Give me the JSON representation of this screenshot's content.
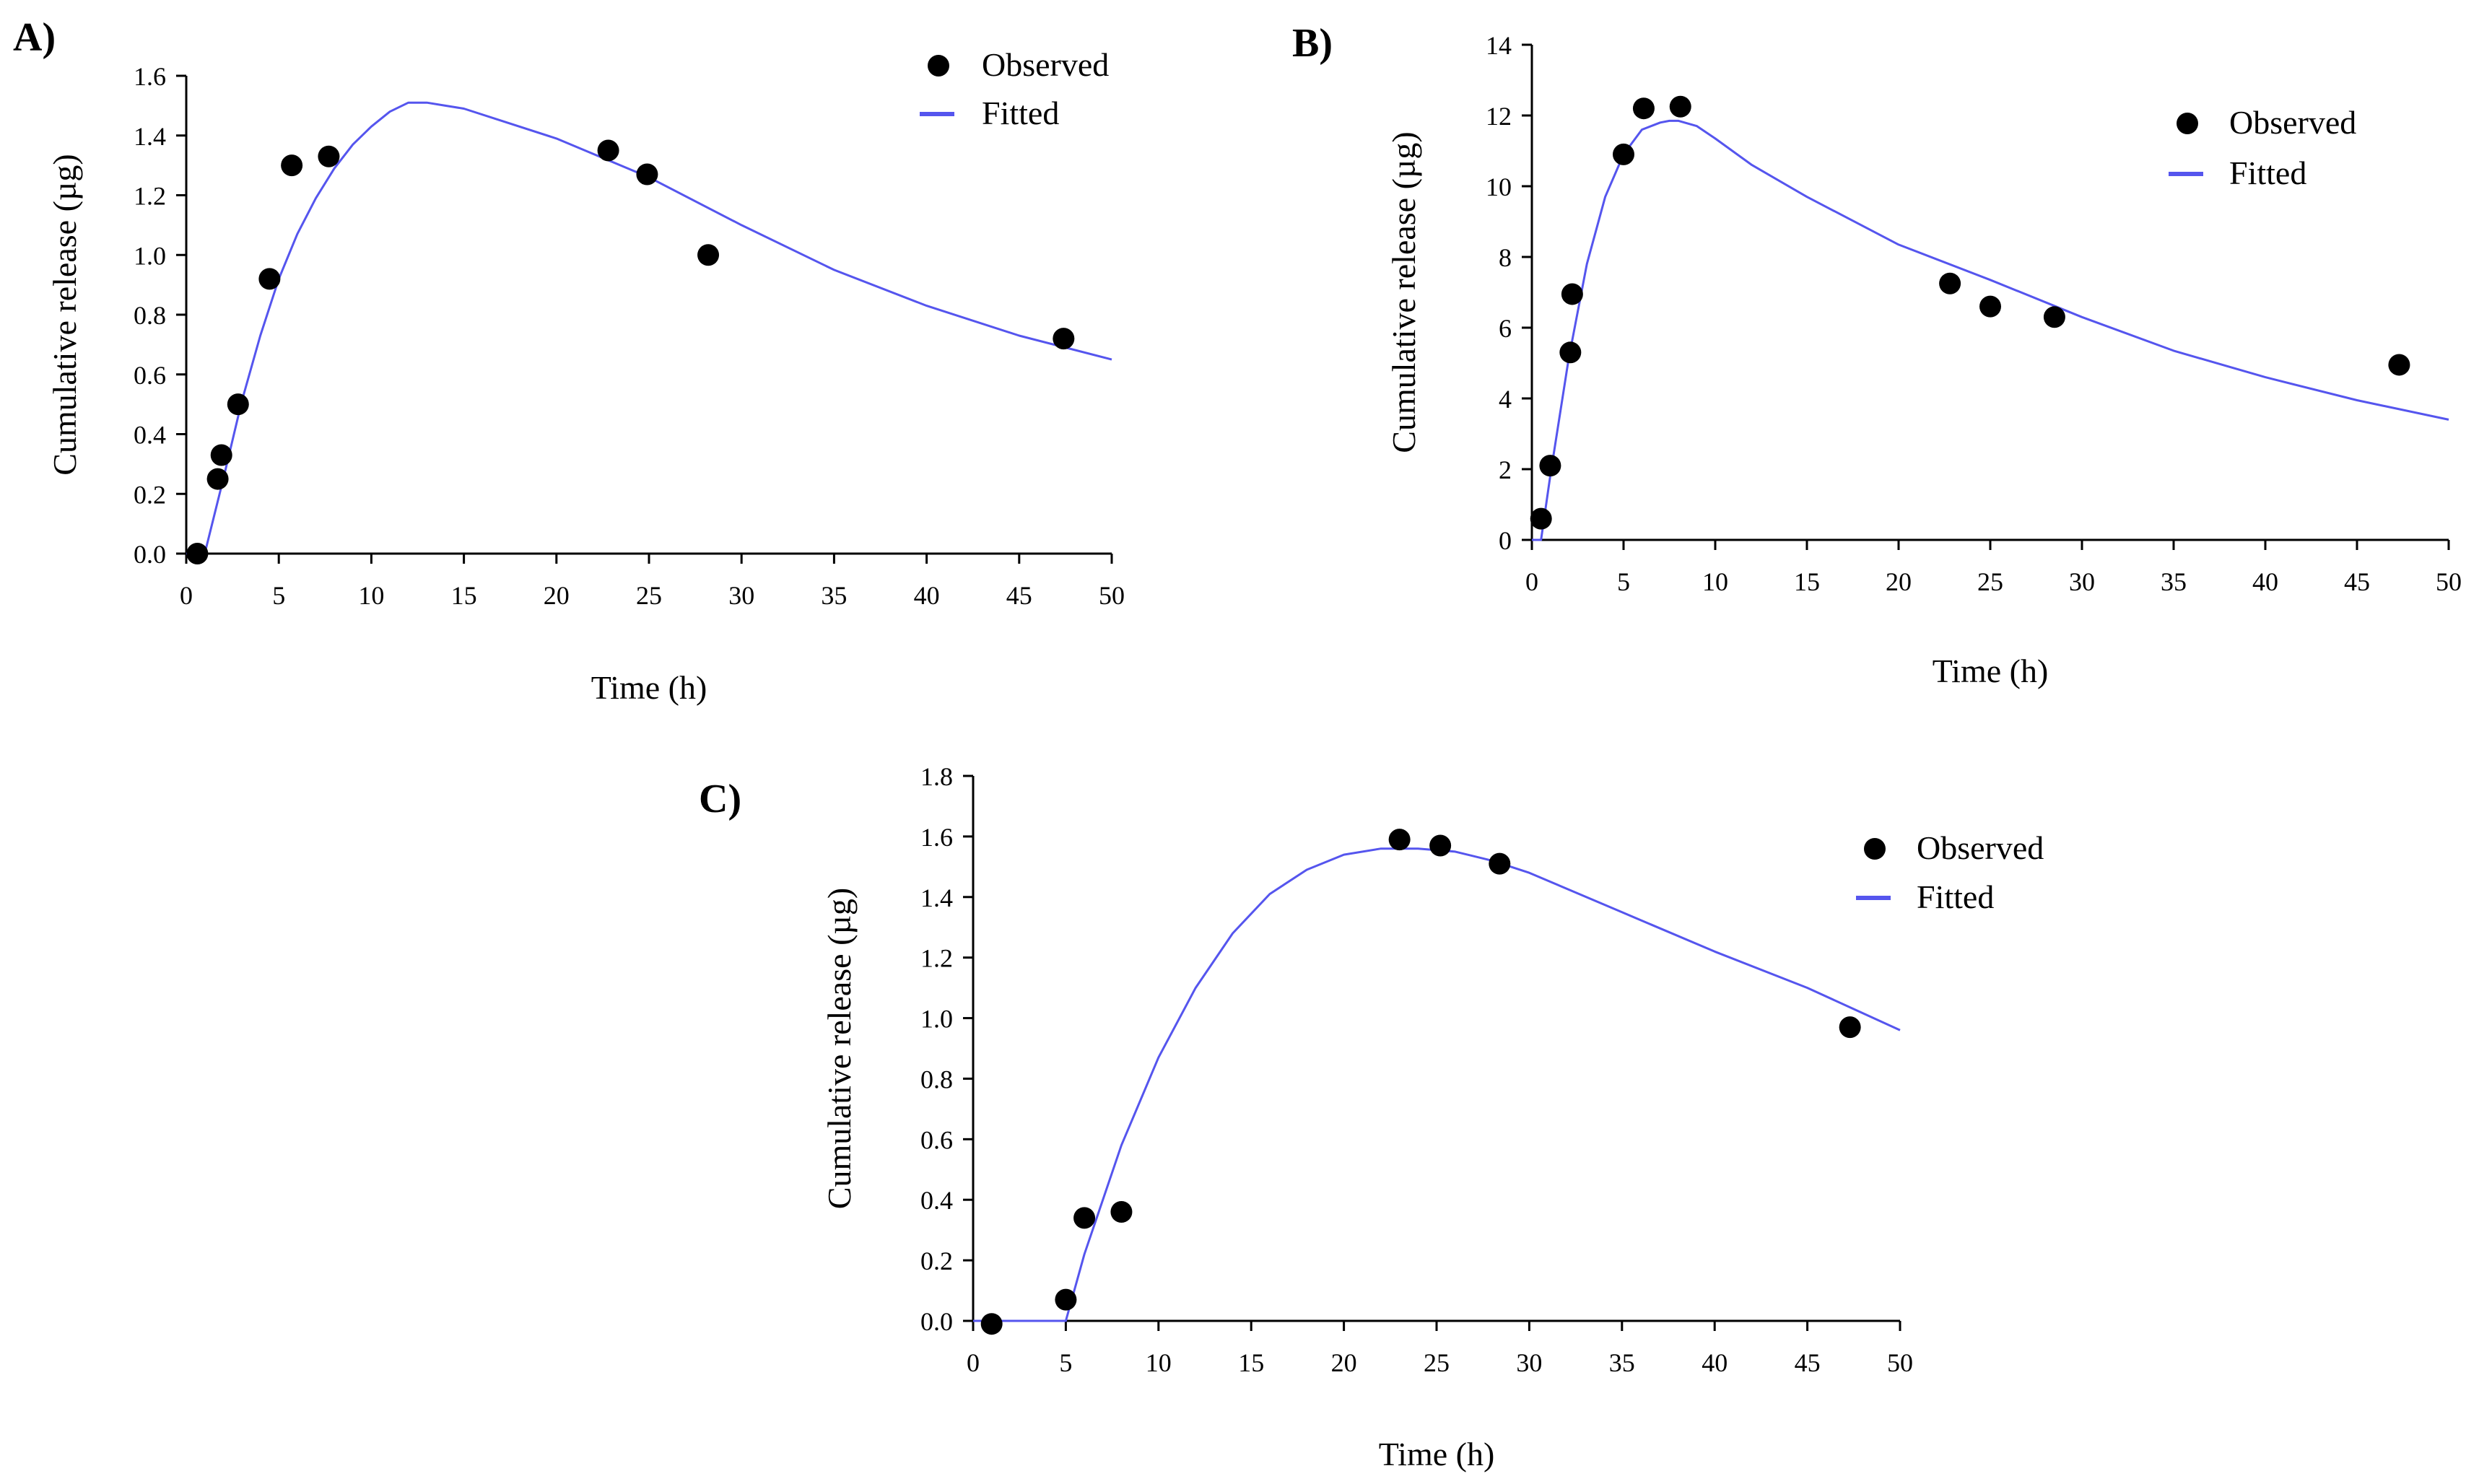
{
  "chart_data": [
    {
      "type": "scatter+line",
      "panel_label": "A)",
      "xlabel": "Time (h)",
      "ylabel": "Cumulative release (µg)",
      "xlim": [
        0,
        50
      ],
      "ylim": [
        0,
        1.6
      ],
      "xticks": [
        "0",
        "5",
        "10",
        "15",
        "20",
        "25",
        "30",
        "35",
        "40",
        "45",
        "50"
      ],
      "yticks": [
        "0.0",
        "0.2",
        "0.4",
        "0.6",
        "0.8",
        "1.0",
        "1.2",
        "1.4",
        "1.6"
      ],
      "legend": {
        "observed": "Observed",
        "fitted": "Fitted",
        "position": "top-right"
      },
      "observed": {
        "x": [
          0.6,
          1.7,
          1.9,
          2.8,
          4.5,
          5.7,
          7.7,
          22.8,
          24.9,
          28.2,
          47.4
        ],
        "y": [
          0.0,
          0.25,
          0.33,
          0.5,
          0.92,
          1.3,
          1.33,
          1.35,
          1.27,
          1.0,
          0.72
        ]
      },
      "fitted": {
        "x": [
          0,
          1,
          2,
          3,
          4,
          5,
          6,
          7,
          8,
          9,
          10,
          11,
          12,
          13,
          14,
          15,
          17,
          20,
          25,
          30,
          35,
          40,
          45,
          50
        ],
        "y": [
          0.0,
          0.0,
          0.25,
          0.51,
          0.73,
          0.92,
          1.07,
          1.19,
          1.29,
          1.37,
          1.43,
          1.48,
          1.51,
          1.51,
          1.5,
          1.49,
          1.45,
          1.39,
          1.26,
          1.1,
          0.95,
          0.83,
          0.73,
          0.65
        ]
      }
    },
    {
      "type": "scatter+line",
      "panel_label": "B)",
      "xlabel": "Time (h)",
      "ylabel": "Cumulative release (µg)",
      "xlim": [
        0,
        50
      ],
      "ylim": [
        0,
        14
      ],
      "xticks": [
        "0",
        "5",
        "10",
        "15",
        "20",
        "25",
        "30",
        "35",
        "40",
        "45",
        "50"
      ],
      "yticks": [
        "0",
        "2",
        "4",
        "6",
        "8",
        "10",
        "12",
        "14"
      ],
      "legend": {
        "observed": "Observed",
        "fitted": "Fitted",
        "position": "top-right"
      },
      "observed": {
        "x": [
          0.5,
          1.0,
          2.1,
          2.2,
          5.0,
          6.1,
          8.1,
          22.8,
          25.0,
          28.5,
          47.3
        ],
        "y": [
          0.6,
          2.1,
          5.3,
          6.95,
          10.9,
          12.2,
          12.25,
          7.25,
          6.6,
          6.3,
          4.95
        ]
      },
      "fitted": {
        "x": [
          0,
          0.5,
          1,
          2,
          3,
          4,
          5,
          6,
          7,
          7.5,
          8,
          9,
          10,
          12,
          15,
          20,
          25,
          30,
          35,
          40,
          45,
          50
        ],
        "y": [
          0.0,
          0.0,
          1.8,
          5.1,
          7.8,
          9.7,
          10.9,
          11.6,
          11.8,
          11.85,
          11.85,
          11.7,
          11.35,
          10.6,
          9.7,
          8.35,
          7.35,
          6.3,
          5.35,
          4.6,
          3.95,
          3.4
        ]
      }
    },
    {
      "type": "scatter+line",
      "panel_label": "C)",
      "xlabel": "Time (h)",
      "ylabel": "Cumulative release (µg)",
      "xlim": [
        0,
        50
      ],
      "ylim": [
        0,
        1.8
      ],
      "xticks": [
        "0",
        "5",
        "10",
        "15",
        "20",
        "25",
        "30",
        "35",
        "40",
        "45",
        "50"
      ],
      "yticks": [
        "0.0",
        "0.2",
        "0.4",
        "0.6",
        "0.8",
        "1.0",
        "1.2",
        "1.4",
        "1.6",
        "1.8"
      ],
      "legend": {
        "observed": "Observed",
        "fitted": "Fitted",
        "position": "top-right"
      },
      "observed": {
        "x": [
          1.0,
          5.0,
          6.0,
          8.0,
          23.0,
          25.2,
          28.4,
          47.3
        ],
        "y": [
          -0.01,
          0.07,
          0.34,
          0.36,
          1.59,
          1.57,
          1.51,
          0.97
        ]
      },
      "fitted": {
        "x": [
          0,
          5,
          6,
          8,
          10,
          12,
          14,
          16,
          18,
          20,
          22,
          24,
          26,
          28,
          30,
          35,
          40,
          45,
          50
        ],
        "y": [
          0.0,
          0.0,
          0.22,
          0.58,
          0.87,
          1.1,
          1.28,
          1.41,
          1.49,
          1.54,
          1.56,
          1.56,
          1.55,
          1.52,
          1.48,
          1.35,
          1.22,
          1.1,
          0.96
        ]
      }
    }
  ]
}
